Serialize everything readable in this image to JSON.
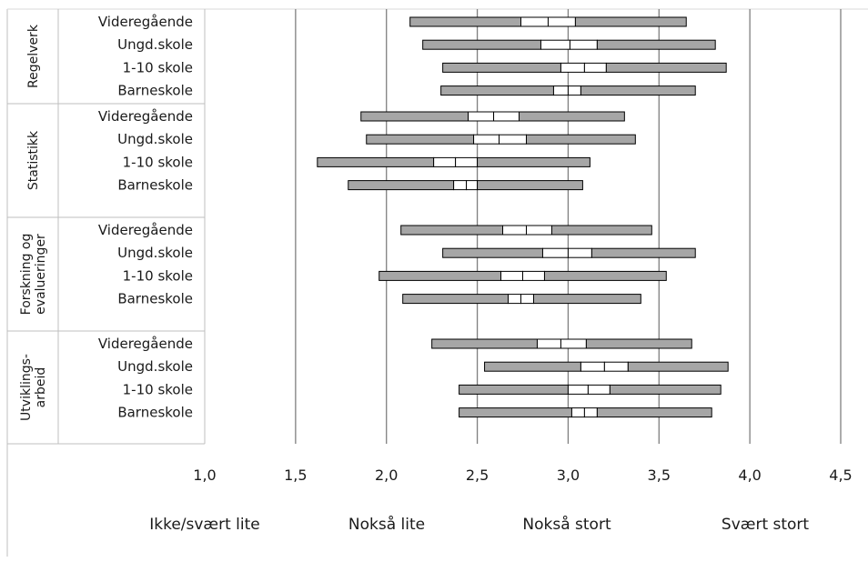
{
  "chart_data": {
    "type": "box",
    "orientation": "horizontal",
    "x_ticks": [
      1.0,
      1.5,
      2.0,
      2.5,
      3.0,
      3.5,
      4.0,
      4.5
    ],
    "x_tick_labels": [
      "1,0",
      "1,5",
      "2,0",
      "2,5",
      "3,0",
      "3,5",
      "4,0",
      "4,5"
    ],
    "xlim": [
      1.0,
      4.5
    ],
    "scale_labels": [
      "Ikke/svært lite",
      "Nokså lite",
      "Nokså stort",
      "Svært stort"
    ],
    "colors": {
      "box": "#a6a6a6",
      "outline": "#000000",
      "median_band": "#ffffff",
      "grid": "#7f7f7f"
    },
    "groups": [
      {
        "label_lines": [
          "Regelverk"
        ],
        "rows": [
          {
            "label": "Videregående",
            "min": 2.13,
            "q1": 2.74,
            "mid_lo": 2.89,
            "mid_hi": 3.04,
            "max": 3.65
          },
          {
            "label": "Ungd.skole",
            "min": 2.2,
            "q1": 2.85,
            "mid_lo": 3.01,
            "mid_hi": 3.16,
            "max": 3.81
          },
          {
            "label": "1-10 skole",
            "min": 2.31,
            "q1": 2.96,
            "mid_lo": 3.09,
            "mid_hi": 3.21,
            "max": 3.87
          },
          {
            "label": "Barneskole",
            "min": 2.3,
            "q1": 2.92,
            "mid_lo": 3.0,
            "mid_hi": 3.07,
            "max": 3.7
          }
        ]
      },
      {
        "label_lines": [
          "Statistikk"
        ],
        "rows": [
          {
            "label": "Videregående",
            "min": 1.86,
            "q1": 2.45,
            "mid_lo": 2.59,
            "mid_hi": 2.73,
            "max": 3.31
          },
          {
            "label": "Ungd.skole",
            "min": 1.89,
            "q1": 2.48,
            "mid_lo": 2.62,
            "mid_hi": 2.77,
            "max": 3.37
          },
          {
            "label": "1-10 skole",
            "min": 1.62,
            "q1": 2.26,
            "mid_lo": 2.38,
            "mid_hi": 2.5,
            "max": 3.12
          },
          {
            "label": "Barneskole",
            "min": 1.79,
            "q1": 2.37,
            "mid_lo": 2.44,
            "mid_hi": 2.5,
            "max": 3.08
          }
        ]
      },
      {
        "label_lines": [
          "Forskning og",
          "evalueringer"
        ],
        "rows": [
          {
            "label": "Videregående",
            "min": 2.08,
            "q1": 2.64,
            "mid_lo": 2.77,
            "mid_hi": 2.91,
            "max": 3.46
          },
          {
            "label": "Ungd.skole",
            "min": 2.31,
            "q1": 2.86,
            "mid_lo": 3.0,
            "mid_hi": 3.13,
            "max": 3.7
          },
          {
            "label": "1-10 skole",
            "min": 1.96,
            "q1": 2.63,
            "mid_lo": 2.75,
            "mid_hi": 2.87,
            "max": 3.54
          },
          {
            "label": "Barneskole",
            "min": 2.09,
            "q1": 2.67,
            "mid_lo": 2.74,
            "mid_hi": 2.81,
            "max": 3.4
          }
        ]
      },
      {
        "label_lines": [
          "Utviklings-",
          "arbeid"
        ],
        "rows": [
          {
            "label": "Videregående",
            "min": 2.25,
            "q1": 2.83,
            "mid_lo": 2.96,
            "mid_hi": 3.1,
            "max": 3.68
          },
          {
            "label": "Ungd.skole",
            "min": 2.54,
            "q1": 3.07,
            "mid_lo": 3.2,
            "mid_hi": 3.33,
            "max": 3.88
          },
          {
            "label": "1-10 skole",
            "min": 2.4,
            "q1": 3.0,
            "mid_lo": 3.11,
            "mid_hi": 3.23,
            "max": 3.84
          },
          {
            "label": "Barneskole",
            "min": 2.4,
            "q1": 3.02,
            "mid_lo": 3.09,
            "mid_hi": 3.16,
            "max": 3.79
          }
        ]
      }
    ]
  }
}
